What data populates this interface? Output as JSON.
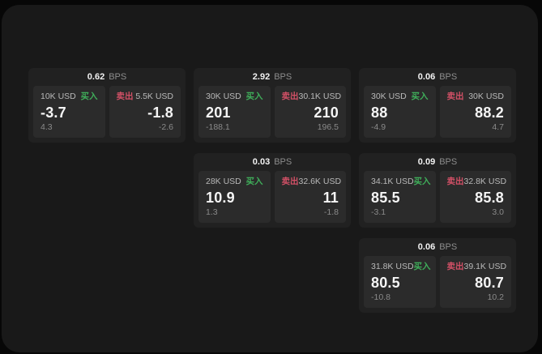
{
  "labels": {
    "buy": "买入",
    "sell": "卖出",
    "bps": "BPS"
  },
  "colors": {
    "buy": "#3fae5a",
    "sell": "#d25066",
    "window_bg": "#191919",
    "card_bg": "#212121",
    "panel_bg": "#2b2b2b"
  },
  "cards": [
    {
      "bps": "0.62",
      "buy": {
        "amount": "10K USD",
        "value": "-3.7",
        "sub": "4.3"
      },
      "sell": {
        "amount": "5.5K USD",
        "value": "-1.8",
        "sub": "-2.6"
      }
    },
    {
      "bps": "2.92",
      "buy": {
        "amount": "30K USD",
        "value": "201",
        "sub": "-188.1"
      },
      "sell": {
        "amount": "30.1K USD",
        "value": "210",
        "sub": "196.5"
      }
    },
    {
      "bps": "0.06",
      "buy": {
        "amount": "30K USD",
        "value": "88",
        "sub": "-4.9"
      },
      "sell": {
        "amount": "30K USD",
        "value": "88.2",
        "sub": "4.7"
      }
    },
    {
      "bps": "0.03",
      "buy": {
        "amount": "28K USD",
        "value": "10.9",
        "sub": "1.3"
      },
      "sell": {
        "amount": "32.6K USD",
        "value": "11",
        "sub": "-1.8"
      }
    },
    {
      "bps": "0.09",
      "buy": {
        "amount": "34.1K USD",
        "value": "85.5",
        "sub": "-3.1"
      },
      "sell": {
        "amount": "32.8K USD",
        "value": "85.8",
        "sub": "3.0"
      }
    },
    {
      "bps": "0.06",
      "buy": {
        "amount": "31.8K USD",
        "value": "80.5",
        "sub": "-10.8"
      },
      "sell": {
        "amount": "39.1K USD",
        "value": "80.7",
        "sub": "10.2"
      }
    }
  ]
}
